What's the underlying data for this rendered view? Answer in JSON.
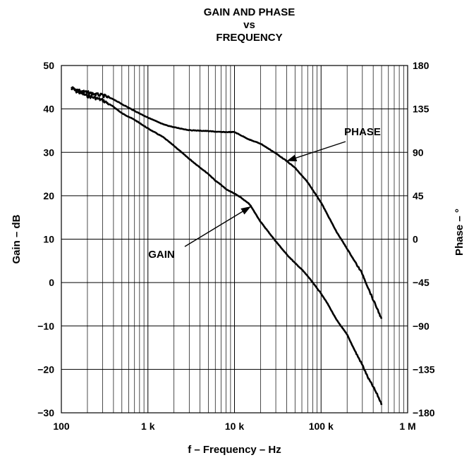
{
  "chart_data": {
    "type": "line",
    "title": [
      "GAIN AND PHASE",
      "vs",
      "FREQUENCY"
    ],
    "xlabel": "f  – Frequency – Hz",
    "ylabel_left": "Gain – dB",
    "ylabel_right": "Phase – °",
    "x_scale": "log",
    "xlim": [
      100,
      1000000
    ],
    "ylim_left": [
      -30,
      50
    ],
    "ylim_right": [
      -180,
      180
    ],
    "x_ticks": [
      {
        "value": 100,
        "label": "100"
      },
      {
        "value": 1000,
        "label": "1 k"
      },
      {
        "value": 10000,
        "label": "10 k"
      },
      {
        "value": 100000,
        "label": "100 k"
      },
      {
        "value": 1000000,
        "label": "1 M"
      }
    ],
    "y_ticks_left": [
      50,
      40,
      30,
      20,
      10,
      0,
      -10,
      -20,
      -30
    ],
    "y_ticks_right": [
      180,
      135,
      90,
      45,
      0,
      -45,
      -90,
      -135,
      -180
    ],
    "grid": true,
    "series": [
      {
        "name": "GAIN",
        "axis": "left",
        "x": [
          130,
          150,
          175,
          200,
          250,
          300,
          400,
          500,
          700,
          1000,
          1500,
          2000,
          3000,
          4000,
          5000,
          6000,
          7000,
          8000,
          10000,
          12000,
          15000,
          20000,
          30000,
          40000,
          50000,
          60000,
          70000,
          80000,
          100000,
          120000,
          150000,
          200000,
          250000,
          300000,
          350000,
          400000,
          450000,
          500000
        ],
        "values": [
          45,
          44,
          43.5,
          43,
          42.5,
          42,
          40.5,
          39,
          37.5,
          35.5,
          33.5,
          31.5,
          28.5,
          26.5,
          25,
          23.5,
          22.5,
          21.5,
          20.5,
          19.5,
          18,
          14,
          9.5,
          6.5,
          4.5,
          3,
          1.5,
          0,
          -2.5,
          -5,
          -8.5,
          -12,
          -16,
          -19,
          -22,
          -24,
          -26,
          -28
        ]
      },
      {
        "name": "PHASE",
        "axis": "right",
        "x": [
          130,
          150,
          175,
          200,
          250,
          300,
          400,
          500,
          700,
          1000,
          1500,
          2000,
          3000,
          5000,
          7000,
          10000,
          15000,
          20000,
          30000,
          40000,
          50000,
          70000,
          100000,
          150000,
          200000,
          300000,
          400000,
          450000,
          500000
        ],
        "values": [
          157,
          155,
          153,
          152,
          150,
          149,
          145,
          140,
          133,
          126,
          119,
          116,
          113,
          112,
          111,
          111,
          103,
          99,
          89,
          81,
          74,
          59,
          38,
          8,
          -10,
          -36,
          -63,
          -73,
          -83
        ]
      }
    ],
    "annotations": [
      {
        "text": "PHASE",
        "target_series": "PHASE"
      },
      {
        "text": "GAIN",
        "target_series": "GAIN"
      }
    ]
  }
}
